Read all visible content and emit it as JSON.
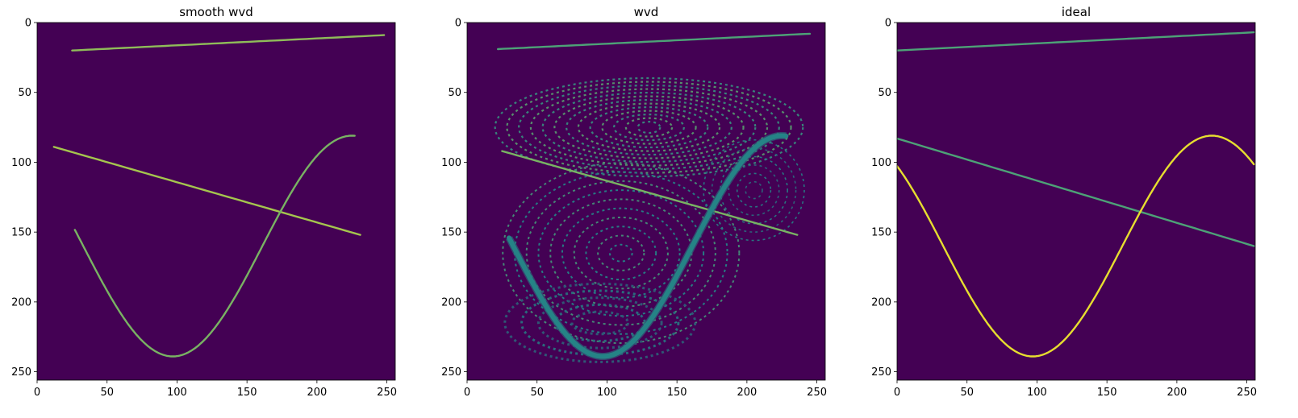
{
  "figure": {
    "background": "#ffffff"
  },
  "chart_data": [
    {
      "type": "heatmap",
      "title": "smooth wvd",
      "xlim": [
        0,
        255
      ],
      "ylim": [
        255,
        0
      ],
      "xticks": [
        0,
        50,
        100,
        150,
        200,
        250
      ],
      "yticks": [
        0,
        50,
        100,
        150,
        200,
        250
      ],
      "colormap": {
        "low": "#440154",
        "mid": "#21918c",
        "high": "#fde725"
      },
      "curves": [
        {
          "kind": "line",
          "x": [
            25,
            248
          ],
          "y": [
            20,
            9
          ],
          "intensity": 0.75
        },
        {
          "kind": "line",
          "x": [
            12,
            231
          ],
          "y": [
            89,
            152
          ],
          "intensity": 0.8
        },
        {
          "kind": "sine",
          "x_range": [
            27,
            227
          ],
          "center": 160,
          "amplitude": 79,
          "period": 256,
          "phase_x": 97,
          "intensity": 0.7
        }
      ]
    },
    {
      "type": "heatmap",
      "title": "wvd",
      "xlim": [
        0,
        255
      ],
      "ylim": [
        255,
        0
      ],
      "xticks": [
        0,
        50,
        100,
        150,
        200,
        250
      ],
      "yticks": [
        0,
        50,
        100,
        150,
        200,
        250
      ],
      "colormap": {
        "low": "#440154",
        "mid": "#21918c",
        "high": "#fde725"
      },
      "interference": true,
      "curves": [
        {
          "kind": "line",
          "x": [
            22,
            245
          ],
          "y": [
            19,
            8
          ],
          "intensity": 0.6
        },
        {
          "kind": "line",
          "x": [
            25,
            236
          ],
          "y": [
            92,
            152
          ],
          "intensity": 0.7
        },
        {
          "kind": "sine",
          "x_range": [
            30,
            228
          ],
          "center": 160,
          "amplitude": 79,
          "period": 256,
          "phase_x": 97,
          "intensity": 0.45
        }
      ]
    },
    {
      "type": "heatmap",
      "title": "ideal",
      "xlim": [
        0,
        255
      ],
      "ylim": [
        255,
        0
      ],
      "xticks": [
        0,
        50,
        100,
        150,
        200,
        250
      ],
      "yticks": [
        0,
        50,
        100,
        150,
        200,
        250
      ],
      "colormap": {
        "low": "#440154",
        "mid": "#21918c",
        "high": "#fde725"
      },
      "curves": [
        {
          "kind": "line",
          "x": [
            0,
            255
          ],
          "y": [
            20,
            7
          ],
          "intensity": 0.6
        },
        {
          "kind": "line",
          "x": [
            0,
            255
          ],
          "y": [
            83,
            160
          ],
          "intensity": 0.6
        },
        {
          "kind": "sine",
          "x_range": [
            0,
            255
          ],
          "center": 160,
          "amplitude": 79,
          "period": 256,
          "phase_x": 97,
          "intensity": 0.95
        }
      ]
    }
  ]
}
